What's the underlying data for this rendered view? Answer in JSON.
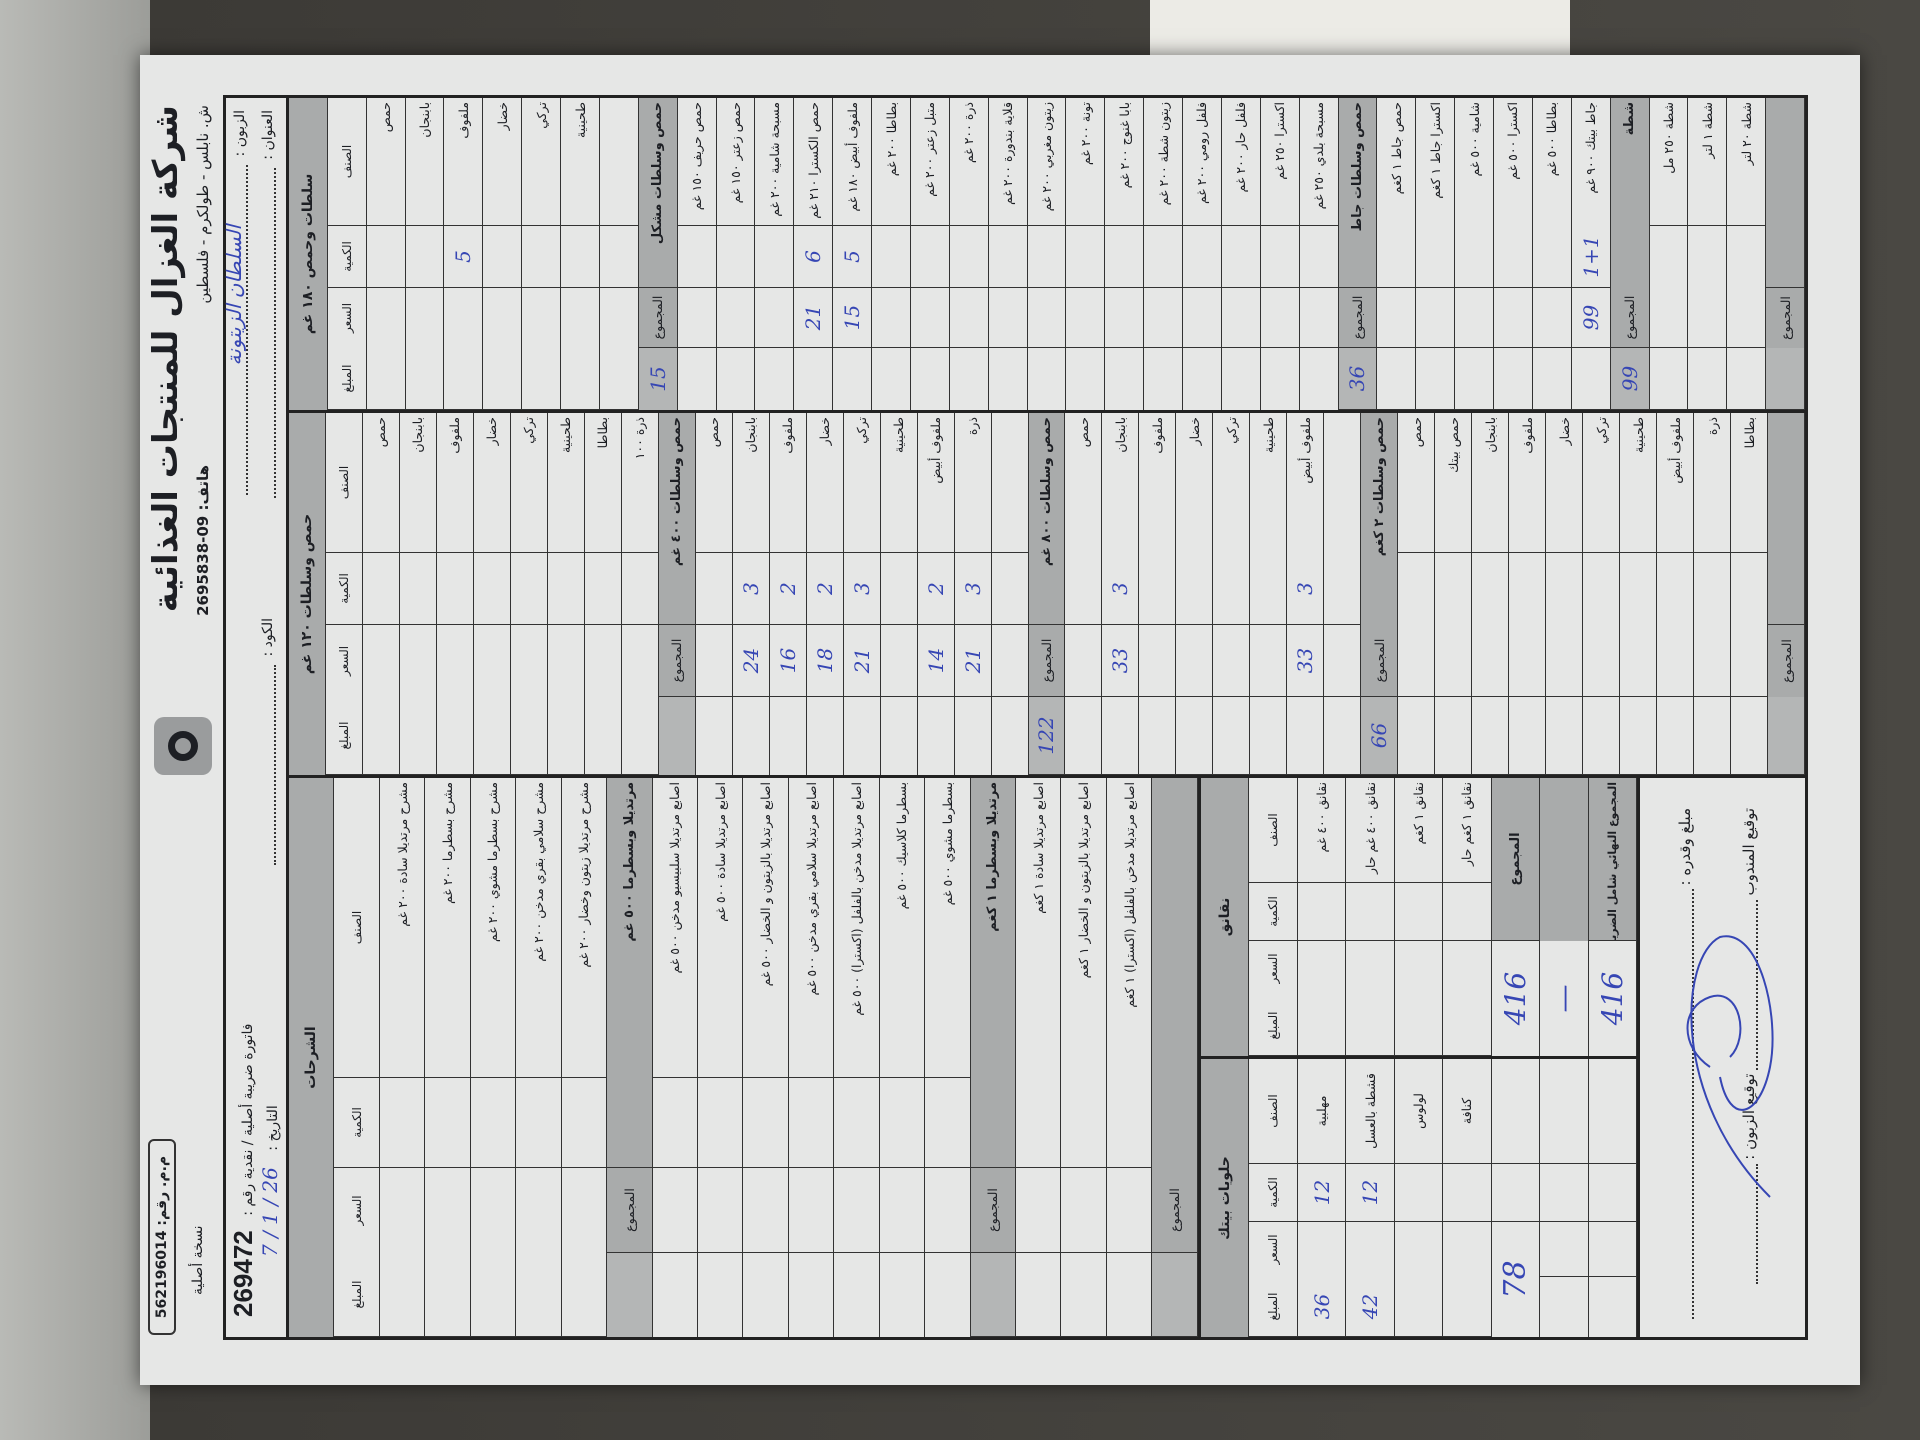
{
  "header": {
    "company": "شركة الغزال للمنتجات الغذائية",
    "phone": "هاتف: 09-2695838",
    "address": "ش. نابلس - طولكرم - فلسطين",
    "registration": "م.م. رقم: 562196014",
    "copy_label": "نسخة أصلية",
    "customer_label": "الزبون :",
    "customer_value": "السلطان الزيتونة",
    "address_label": "العنوان :",
    "code_label": "الكود :",
    "invoice_label": "فاتورة ضريبة أصلية / نقدية رقم :",
    "invoice_number": "269472",
    "date_label": "التاريخ :",
    "date_value": "26 / 1 / 7"
  },
  "columns": [
    "الصنف",
    "الكمية",
    "السعر",
    "المبلغ"
  ],
  "labels": {
    "total": "المجموع"
  },
  "section_a": {
    "title": "سلطات وحمص ١٨٠ غم",
    "rows": [
      {
        "name": "حمص"
      },
      {
        "name": "بابنجان"
      },
      {
        "name": "ملفوف",
        "qty": "5"
      },
      {
        "name": "خضار"
      },
      {
        "name": "تركي"
      },
      {
        "name": "طحينية"
      },
      {
        "name": ""
      },
      {
        "group": "حمص وسلطات مشكل",
        "total": "15"
      },
      {
        "name": "حمص حريف ١٥٠ غم"
      },
      {
        "name": "حمص زعتر ١٥٠ غم"
      },
      {
        "name": "مسبحة شامية ٢٠٠ غم"
      },
      {
        "name": "حمص الكسترا ٢١٠ غم",
        "qty": "6",
        "price": "21"
      },
      {
        "name": "ملفوف أبيض ١٨٠ غم",
        "qty": "5",
        "price": "15"
      },
      {
        "name": "بطاطا ٢٠٠ غم"
      },
      {
        "name": "متبل زعتر ٢٠٠ غم"
      },
      {
        "name": "ذرة ٢٠٠ غم"
      },
      {
        "name": "قلاية بندورة ٢٠٠ غم"
      },
      {
        "name": "زيتون مغربي ٢٠٠ غم"
      },
      {
        "name": "تونة ٢٠٠ غم"
      },
      {
        "name": "بابا غنوج ٢٠٠ غم"
      },
      {
        "name": "زيتون شطة ٢٠٠ غم"
      },
      {
        "name": "فلفل رومي ٢٠٠ غم"
      },
      {
        "name": "فلفل حار ٢٠٠ غم"
      },
      {
        "name": "اكسترا ٢٥٠ غم"
      },
      {
        "name": "مسبحة بلدي ٢٥٠ غم"
      },
      {
        "group": "حمص وسلطات جاط",
        "total": "36"
      },
      {
        "name": "حمص جاط ١ كغم"
      },
      {
        "name": "اكسترا جاط ١ كغم"
      },
      {
        "name": "شامية ٥٠٠ غم"
      },
      {
        "name": "اكسترا ٥٠٠ غم"
      },
      {
        "name": "بطاطا ٥٠٠ غم"
      },
      {
        "name": "جاط بيتك ٩٠٠ غم",
        "qty": "1+1",
        "price": "99"
      },
      {
        "group": "شطة",
        "total": "99"
      },
      {
        "name": "شطة ٢٥٠ مل"
      },
      {
        "name": "شطة ١ لتر"
      },
      {
        "name": "شطة ٢٠ لتر"
      },
      {
        "group": "",
        "total": ""
      }
    ]
  },
  "section_b": {
    "title": "حمص وسلطات ١٢٠ غم",
    "rows": [
      {
        "name": "حمص"
      },
      {
        "name": "بابنجان"
      },
      {
        "name": "ملفوف"
      },
      {
        "name": "خضار"
      },
      {
        "name": "تركي"
      },
      {
        "name": "طحينية"
      },
      {
        "name": "بطاطا"
      },
      {
        "name": "ذرة ١٠٠"
      },
      {
        "group": "حمص وسلطات ٤٠٠ غم",
        "total": ""
      },
      {
        "name": "حمص"
      },
      {
        "name": "بابنجان",
        "qty": "3",
        "price": "24"
      },
      {
        "name": "ملفوف",
        "qty": "2",
        "price": "16"
      },
      {
        "name": "خضار",
        "qty": "2",
        "price": "18"
      },
      {
        "name": "تركي",
        "qty": "3",
        "price": "21"
      },
      {
        "name": "طحينية"
      },
      {
        "name": "ملفوف أبيض",
        "qty": "2",
        "price": "14"
      },
      {
        "name": "ذرة",
        "qty": "3",
        "price": "21"
      },
      {
        "name": ""
      },
      {
        "group": "حمص وسلطات ٨٠٠ غم",
        "total": "122"
      },
      {
        "name": "حمص"
      },
      {
        "name": "بابنجان",
        "qty": "3",
        "price": "33"
      },
      {
        "name": "ملفوف"
      },
      {
        "name": "خضار"
      },
      {
        "name": "تركي"
      },
      {
        "name": "طحينية"
      },
      {
        "name": "ملفوف أبيض",
        "qty": "3",
        "price": "33"
      },
      {
        "name": ""
      },
      {
        "group": "حمص وسلطات ٢ كغم",
        "total": "66"
      },
      {
        "name": "حمص"
      },
      {
        "name": "حمص بيتك"
      },
      {
        "name": "بابنجان"
      },
      {
        "name": "ملفوف"
      },
      {
        "name": "خضار"
      },
      {
        "name": "تركي"
      },
      {
        "name": "طحينية"
      },
      {
        "name": "ملفوف أبيض"
      },
      {
        "name": "ذرة"
      },
      {
        "name": "بطاطا"
      },
      {
        "group": "",
        "total": ""
      }
    ]
  },
  "section_c": {
    "title": "الشرحات",
    "rows": [
      {
        "name": "مشرح مرتديلا سادة ٢٠٠ غم"
      },
      {
        "name": "مشرح بسطرما ٢٠٠ غم"
      },
      {
        "name": "مشرح بسطرما مشوي ٢٠٠ غم"
      },
      {
        "name": "مشرح سلامي بقري مدخن ٢٠٠ غم"
      },
      {
        "name": "مشرح مرتديلا زيتون وخضار ٢٠٠ غم"
      },
      {
        "group": "مرتديلا وبسطرما ٥٠٠ غم",
        "total": ""
      },
      {
        "name": "اصابع مرتديلا سلبيسيو مدخن ٥٠٠ غم"
      },
      {
        "name": "اصابع مرتديلا سادة ٥٠٠ غم"
      },
      {
        "name": "اصابع مرتديلا بالزيتون و الخضار ٥٠٠ غم"
      },
      {
        "name": "اصابع مرتديلا سلامي بقري مدخن ٥٠٠ غم"
      },
      {
        "name": "اصابع مرتديلا مدخن بالفلفل (اكسترا) ٥٠٠ غم"
      },
      {
        "name": "بسطرما كلاسيك ٥٠٠ غم"
      },
      {
        "name": "بسطرما مشوي ٥٠٠ غم"
      },
      {
        "group": "مرتديلا وبسطرما ١ كغم",
        "total": ""
      },
      {
        "name": "اصابع مرتديلا سادة ١ كغم"
      },
      {
        "name": "اصابع مرتديلا بالزيتون و الخضار ١ كغم"
      },
      {
        "name": "اصابع مرتديلا مدخن بالفلفل (اكسترا) ١ كغم"
      },
      {
        "group": "",
        "total": ""
      }
    ]
  },
  "sausages": {
    "title": "نقانق",
    "rows": [
      {
        "name": "نقانق ٤٠٠ غم"
      },
      {
        "name": "نقانق ٤٠٠ غم حار"
      },
      {
        "name": "نقانق ١ كغم"
      },
      {
        "name": "نقانق ١ كغم حار"
      }
    ],
    "total_label": "المجموع",
    "total": "416",
    "middle_value": "—",
    "grand_total_label": "المجموع النهائي شامل الضريبة",
    "grand_total": "416"
  },
  "sweets": {
    "title": "حلويات بيتك",
    "rows": [
      {
        "name": "مهلبية",
        "qty": "12",
        "amount": "36"
      },
      {
        "name": "قشطة بالعسل",
        "qty": "12",
        "amount": "42"
      },
      {
        "name": "لولوس"
      },
      {
        "name": "كنافة"
      }
    ],
    "total": "78"
  },
  "signature": {
    "amount_words_label": "مبلغ وقدره :",
    "customer_signature_label": "توقيع الزبون :",
    "rep_signature_label": "توقيع المندوب"
  },
  "colors": {
    "ink": "#3646b4",
    "bar": "#a9abab",
    "paper": "#e6e7e6"
  }
}
